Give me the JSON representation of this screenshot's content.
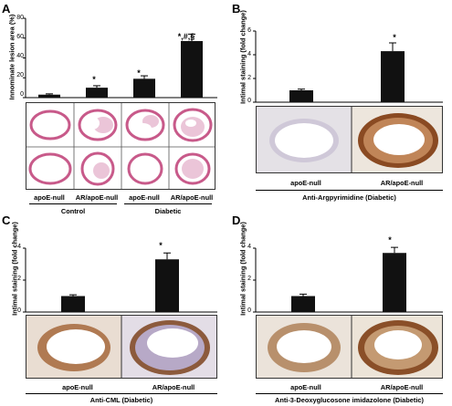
{
  "panels": {
    "A": {
      "letter": "A",
      "ylabel": "Innominate lesion area (%)",
      "yticks": [
        "0",
        "20",
        "40",
        "60",
        "80"
      ],
      "bar_labels": [
        "apoE-null",
        "AR/apoE-null",
        "apoE-null",
        "AR/apoE-null"
      ],
      "group_labels": [
        "Control",
        "Diabetic"
      ],
      "stars": [
        "",
        "*",
        "*",
        "*,#,§"
      ]
    },
    "B": {
      "letter": "B",
      "ylabel": "Intimal staining (fold change)",
      "yticks": [
        "0",
        "2",
        "4",
        "6"
      ],
      "bar_labels": [
        "apoE-null",
        "AR/apoE-null"
      ],
      "caption": "Anti-Argpyrimidine (Diabetic)",
      "stars": [
        "",
        "*"
      ]
    },
    "C": {
      "letter": "C",
      "ylabel": "Intimal staining (fold change)",
      "yticks": [
        "0",
        "2",
        "4"
      ],
      "bar_labels": [
        "apoE-null",
        "AR/apoE-null"
      ],
      "caption": "Anti-CML (Diabetic)",
      "stars": [
        "",
        "*"
      ]
    },
    "D": {
      "letter": "D",
      "ylabel": "Intimal staining (fold change)",
      "yticks": [
        "0",
        "2",
        "4"
      ],
      "bar_labels": [
        "apoE-null",
        "AR/apoE-null"
      ],
      "caption": "Anti-3-Deoxyglucosone imidazolone (Diabetic)",
      "stars": [
        "",
        "*"
      ]
    }
  },
  "chart_data": [
    {
      "type": "bar",
      "panel": "A",
      "categories": [
        "apoE-null",
        "AR/apoE-null",
        "apoE-null",
        "AR/apoE-null"
      ],
      "groups": [
        "Control",
        "Control",
        "Diabetic",
        "Diabetic"
      ],
      "values": [
        3,
        10,
        19,
        57
      ],
      "errors": [
        0.8,
        2,
        3,
        7
      ],
      "ylim": [
        0,
        80
      ],
      "ylabel": "Innominate lesion area (%)"
    },
    {
      "type": "bar",
      "panel": "B",
      "categories": [
        "apoE-null",
        "AR/apoE-null"
      ],
      "values": [
        1.0,
        4.3
      ],
      "errors": [
        0.1,
        0.7
      ],
      "ylim": [
        0,
        6
      ],
      "ylabel": "Intimal staining (fold change)"
    },
    {
      "type": "bar",
      "panel": "C",
      "categories": [
        "apoE-null",
        "AR/apoE-null"
      ],
      "values": [
        1.0,
        3.3
      ],
      "errors": [
        0.08,
        0.4
      ],
      "ylim": [
        0,
        4
      ],
      "ylabel": "Intimal staining (fold change)"
    },
    {
      "type": "bar",
      "panel": "D",
      "categories": [
        "apoE-null",
        "AR/apoE-null"
      ],
      "values": [
        1.0,
        3.7
      ],
      "errors": [
        0.12,
        0.35
      ],
      "ylim": [
        0,
        4
      ],
      "ylabel": "Intimal staining (fold change)"
    }
  ]
}
